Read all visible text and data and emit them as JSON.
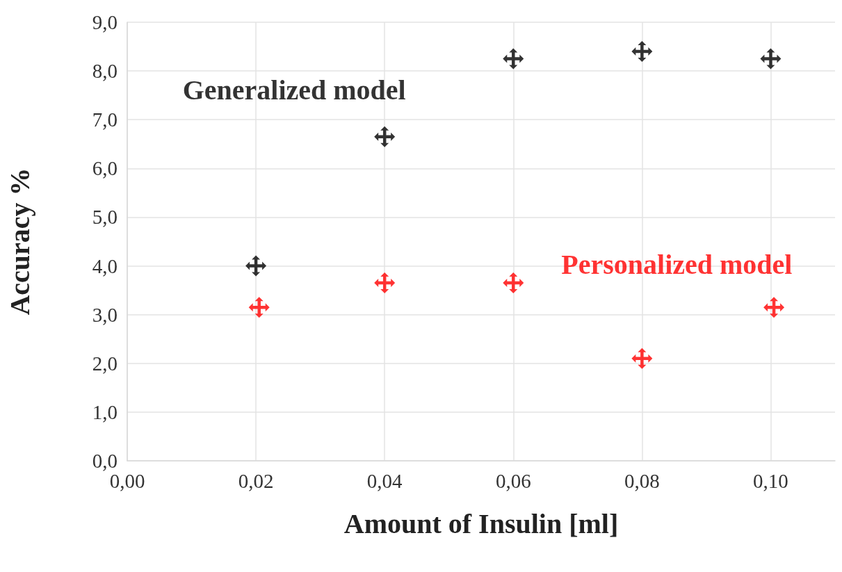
{
  "chart_data": {
    "type": "scatter",
    "xlabel": "Amount of Insulin [ml]",
    "ylabel": "Accuracy %",
    "xlim": [
      0,
      0.11
    ],
    "xticks": [
      {
        "value": 0,
        "label": "0,00"
      },
      {
        "value": 0.02,
        "label": "0,02"
      },
      {
        "value": 0.04,
        "label": "0,04"
      },
      {
        "value": 0.06,
        "label": "0,06"
      },
      {
        "value": 0.08,
        "label": "0,08"
      },
      {
        "value": 0.1,
        "label": "0,10"
      }
    ],
    "ylim": [
      0,
      9
    ],
    "yticks": [
      {
        "value": 0,
        "label": "0,0"
      },
      {
        "value": 1,
        "label": "1,0"
      },
      {
        "value": 2,
        "label": "2,0"
      },
      {
        "value": 3,
        "label": "3,0"
      },
      {
        "value": 4,
        "label": "4,0"
      },
      {
        "value": 5,
        "label": "5,0"
      },
      {
        "value": 6,
        "label": "6,0"
      },
      {
        "value": 7,
        "label": "7,0"
      },
      {
        "value": 8,
        "label": "8,0"
      },
      {
        "value": 9,
        "label": "9,0"
      }
    ],
    "grid": true,
    "legend": false,
    "marker": "cross",
    "series": [
      {
        "name": "Generalized model",
        "color": "#000000",
        "x": [
          0.02,
          0.04,
          0.06,
          0.08,
          0.1
        ],
        "values": [
          4.0,
          6.65,
          8.25,
          8.4,
          8.25
        ]
      },
      {
        "name": "Personalized model",
        "color": "#ff0000",
        "x": [
          0.0205,
          0.04,
          0.06,
          0.08,
          0.1005
        ],
        "values": [
          3.15,
          3.65,
          3.65,
          2.1,
          3.15
        ]
      }
    ]
  }
}
